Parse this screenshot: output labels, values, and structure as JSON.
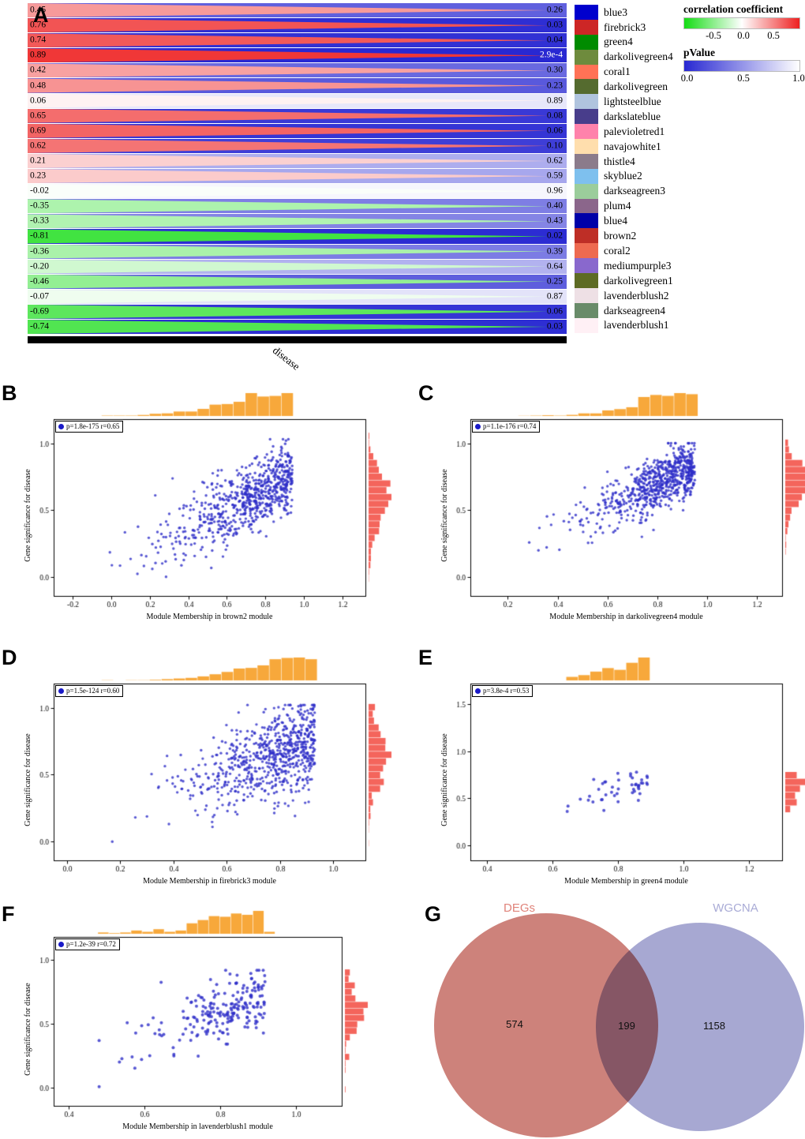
{
  "chart_data": [
    {
      "type": "module-trait-wedge-plot",
      "letter": "A",
      "trait": "disease",
      "corr_legend": {
        "title": "correlation coefficient",
        "ticks": [
          "-0.5",
          "0.0",
          "0.5"
        ],
        "tick_pos": [
          25,
          50,
          75
        ],
        "range": [
          -1,
          1
        ],
        "colors": [
          "#14dc14",
          "#ffffff",
          "#ee2020"
        ]
      },
      "p_legend": {
        "title": "pValue",
        "ticks": [
          "0.0",
          "0.5",
          "1.0"
        ],
        "tick_pos": [
          3,
          50,
          96
        ],
        "range": [
          0,
          1
        ],
        "colors": [
          "#2828d2",
          "#ffffff"
        ]
      },
      "rows": [
        {
          "module": "blue3",
          "swatch": "#0000CD",
          "corr": 0.45,
          "corr_label": "0.45",
          "p": 0.26,
          "p_label": "0.26"
        },
        {
          "module": "firebrick3",
          "swatch": "#CD2626",
          "corr": 0.76,
          "corr_label": "0.76",
          "p": 0.03,
          "p_label": "0.03"
        },
        {
          "module": "green4",
          "swatch": "#008B00",
          "corr": 0.74,
          "corr_label": "0.74",
          "p": 0.04,
          "p_label": "0.04"
        },
        {
          "module": "darkolivegreen4",
          "swatch": "#6E8B3D",
          "corr": 0.89,
          "corr_label": "0.89",
          "p": 0.00029,
          "p_label": "2.9e-4"
        },
        {
          "module": "coral1",
          "swatch": "#FF7256",
          "corr": 0.42,
          "corr_label": "0.42",
          "p": 0.3,
          "p_label": "0.30"
        },
        {
          "module": "darkolivegreen",
          "swatch": "#556B2F",
          "corr": 0.48,
          "corr_label": "0.48",
          "p": 0.23,
          "p_label": "0.23"
        },
        {
          "module": "lightsteelblue",
          "swatch": "#B0C4DE",
          "corr": 0.06,
          "corr_label": "0.06",
          "p": 0.89,
          "p_label": "0.89"
        },
        {
          "module": "darkslateblue",
          "swatch": "#483D8B",
          "corr": 0.65,
          "corr_label": "0.65",
          "p": 0.08,
          "p_label": "0.08"
        },
        {
          "module": "palevioletred1",
          "swatch": "#FF82AB",
          "corr": 0.69,
          "corr_label": "0.69",
          "p": 0.06,
          "p_label": "0.06"
        },
        {
          "module": "navajowhite1",
          "swatch": "#FFDEAD",
          "corr": 0.62,
          "corr_label": "0.62",
          "p": 0.1,
          "p_label": "0.10"
        },
        {
          "module": "thistle4",
          "swatch": "#8B7B8B",
          "corr": 0.21,
          "corr_label": "0.21",
          "p": 0.62,
          "p_label": "0.62"
        },
        {
          "module": "skyblue2",
          "swatch": "#7EC0EE",
          "corr": 0.23,
          "corr_label": "0.23",
          "p": 0.59,
          "p_label": "0.59"
        },
        {
          "module": "darkseagreen3",
          "swatch": "#9BCD9B",
          "corr": -0.02,
          "corr_label": "-0.02",
          "p": 0.96,
          "p_label": "0.96"
        },
        {
          "module": "plum4",
          "swatch": "#8B668B",
          "corr": -0.35,
          "corr_label": "-0.35",
          "p": 0.4,
          "p_label": "0.40"
        },
        {
          "module": "blue4",
          "swatch": "#0000A8",
          "corr": -0.33,
          "corr_label": "-0.33",
          "p": 0.43,
          "p_label": "0.43"
        },
        {
          "module": "brown2",
          "swatch": "#BE2E26",
          "corr": -0.81,
          "corr_label": "-0.81",
          "p": 0.02,
          "p_label": "0.02"
        },
        {
          "module": "coral2",
          "swatch": "#EE6A50",
          "corr": -0.36,
          "corr_label": "-0.36",
          "p": 0.39,
          "p_label": "0.39"
        },
        {
          "module": "mediumpurple3",
          "swatch": "#8968CD",
          "corr": -0.2,
          "corr_label": "-0.20",
          "p": 0.64,
          "p_label": "0.64"
        },
        {
          "module": "darkolivegreen1",
          "swatch": "#5E6B24",
          "corr": -0.46,
          "corr_label": "-0.46",
          "p": 0.25,
          "p_label": "0.25"
        },
        {
          "module": "lavenderblush2",
          "swatch": "#EEE0E5",
          "corr": -0.07,
          "corr_label": "-0.07",
          "p": 0.87,
          "p_label": "0.87"
        },
        {
          "module": "darkseagreen4",
          "swatch": "#698B69",
          "corr": -0.69,
          "corr_label": "-0.69",
          "p": 0.06,
          "p_label": "0.06"
        },
        {
          "module": "lavenderblush1",
          "swatch": "#FFF0F5",
          "corr": -0.74,
          "corr_label": "-0.74",
          "p": 0.03,
          "p_label": "0.03"
        }
      ]
    },
    {
      "type": "scatter",
      "letter": "B",
      "annotation": "p=1.8e-175 r=0.65",
      "p_label": "1.8e-175",
      "r": 0.65,
      "xlabel": "Module Membership in brown2 module",
      "ylabel": "Gene significance for disease",
      "xticks": [
        "-0.2",
        "0.0",
        "0.2",
        "0.4",
        "0.6",
        "0.8",
        "1.0",
        "1.2"
      ],
      "yticks": [
        "0.0",
        "0.5",
        "1.0"
      ],
      "xlim": [
        -0.3,
        1.32
      ],
      "ylim": [
        -0.14,
        1.18
      ],
      "n": 720,
      "seed": 11,
      "x_peak": 0.94,
      "x_spread": 0.3,
      "x_clip": [
        -0.02,
        1.01
      ],
      "slope": 0.75,
      "intercept": 0.05,
      "noise": 0.13,
      "y_clip": [
        -0.02,
        1.03
      ],
      "point_r": 1.7,
      "point_color": "#2e2ec8",
      "top_hist_color": "#f7a83b",
      "right_hist_color": "#f4655c"
    },
    {
      "type": "scatter",
      "letter": "C",
      "annotation": "p=1.1e-176 r=0.74",
      "p_label": "1.1e-176",
      "r": 0.74,
      "xlabel": "Module Membership in darkolivegreen4 module",
      "ylabel": "Gene significance for disease",
      "xticks": [
        "0.2",
        "0.4",
        "0.6",
        "0.8",
        "1.0",
        "1.2"
      ],
      "yticks": [
        "0.0",
        "0.5",
        "1.0"
      ],
      "xlim": [
        0.05,
        1.3
      ],
      "ylim": [
        -0.14,
        1.18
      ],
      "n": 720,
      "seed": 22,
      "x_peak": 0.95,
      "x_spread": 0.2,
      "x_clip": [
        0.1,
        1.0
      ],
      "slope": 0.85,
      "intercept": 0.02,
      "noise": 0.1,
      "y_clip": [
        0.0,
        1.0
      ],
      "point_r": 1.7,
      "point_color": "#2e2ec8",
      "top_hist_color": "#f7a83b",
      "right_hist_color": "#f4655c"
    },
    {
      "type": "scatter",
      "letter": "D",
      "annotation": "p=1.5e-124 r=0.60",
      "p_label": "1.5e-124",
      "r": 0.6,
      "xlabel": "Module Membership in firebrick3 module",
      "ylabel": "Gene significance for disease",
      "xticks": [
        "0.0",
        "0.2",
        "0.4",
        "0.6",
        "0.8",
        "1.0"
      ],
      "yticks": [
        "0.0",
        "0.5",
        "1.0"
      ],
      "xlim": [
        -0.05,
        1.12
      ],
      "ylim": [
        -0.14,
        1.18
      ],
      "n": 720,
      "seed": 33,
      "x_peak": 0.93,
      "x_spread": 0.22,
      "x_clip": [
        0.25,
        1.0
      ],
      "slope": 0.7,
      "intercept": 0.1,
      "noise": 0.16,
      "y_clip": [
        0.0,
        1.02
      ],
      "outlier": [
        0.17,
        0.0
      ],
      "point_r": 1.7,
      "point_color": "#2e2ec8",
      "top_hist_color": "#f7a83b",
      "right_hist_color": "#f4655c"
    },
    {
      "type": "scatter",
      "letter": "E",
      "annotation": "p=3.8e-4 r=0.53",
      "p_label": "3.8e-4",
      "r": 0.53,
      "xlabel": "Module Membership in green4 module",
      "ylabel": "Gene significance for disease",
      "xticks": [
        "0.4",
        "0.6",
        "0.8",
        "1.0",
        "1.2"
      ],
      "yticks": [
        "0.0",
        "0.5",
        "1.0",
        "1.5"
      ],
      "xlim": [
        0.35,
        1.3
      ],
      "ylim": [
        -0.16,
        1.72
      ],
      "n": 46,
      "seed": 55,
      "x_peak": 0.89,
      "x_spread": 0.1,
      "x_clip": [
        0.58,
        1.0
      ],
      "slope": 0.9,
      "intercept": -0.12,
      "noise": 0.08,
      "y_clip": [
        0.3,
        0.95
      ],
      "point_r": 2.0,
      "point_color": "#2e2ec8",
      "top_hist_color": "#f7a83b",
      "right_hist_color": "#f4655c"
    },
    {
      "type": "scatter",
      "letter": "F",
      "annotation": "p=1.2e-39 r=0.72",
      "p_label": "1.2e-39",
      "r": 0.72,
      "xlabel": "Module Membership in lavenderblush1 module",
      "ylabel": "Gene significance for disease",
      "xticks": [
        "0.4",
        "0.6",
        "0.8",
        "1.0"
      ],
      "yticks": [
        "0.0",
        "0.5",
        "1.0"
      ],
      "xlim": [
        0.36,
        1.12
      ],
      "ylim": [
        -0.14,
        1.18
      ],
      "n": 215,
      "seed": 66,
      "x_peak": 0.92,
      "x_spread": 0.14,
      "x_clip": [
        0.46,
        1.0
      ],
      "slope": 1.05,
      "intercept": -0.25,
      "noise": 0.11,
      "y_clip": [
        0.0,
        0.92
      ],
      "outlier": [
        0.48,
        0.01
      ],
      "point_r": 2.0,
      "point_color": "#2e2ec8",
      "top_hist_color": "#f7a83b",
      "right_hist_color": "#f4655c"
    },
    {
      "type": "venn",
      "letter": "G",
      "sets": [
        {
          "label": "DEGs",
          "only": 574,
          "color": "#c9776f",
          "label_color": "#e0837a"
        },
        {
          "label": "WGCNA",
          "only": 1158,
          "color": "#9fa0ce",
          "label_color": "#a9abd6"
        }
      ],
      "intersection": 199
    }
  ]
}
